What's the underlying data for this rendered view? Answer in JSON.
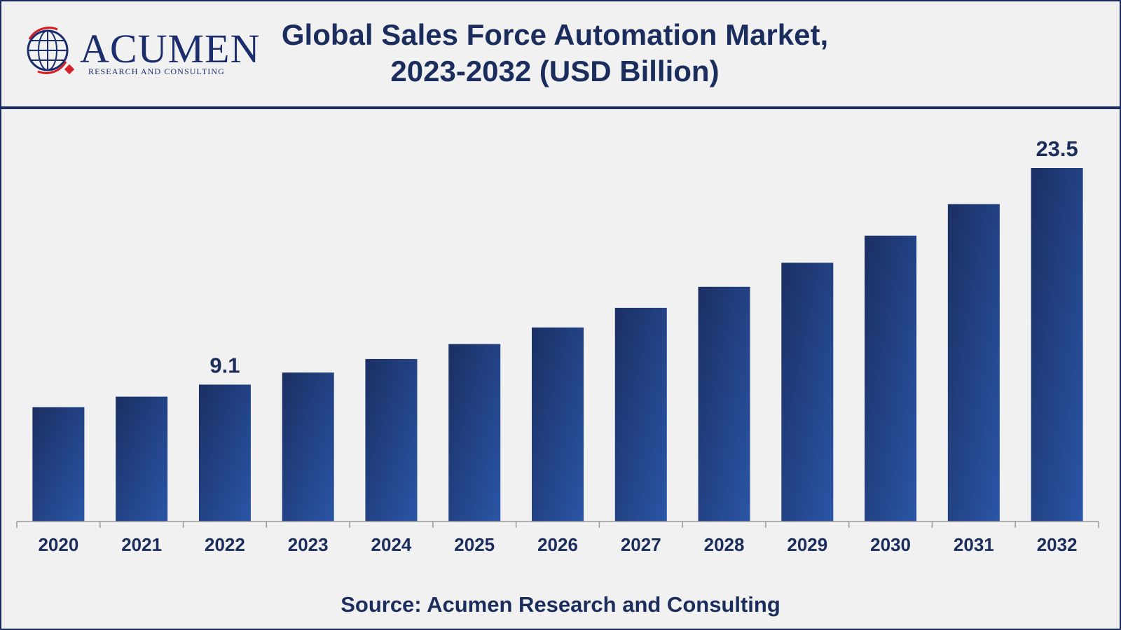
{
  "header": {
    "logo_word": "ACUMEN",
    "logo_sub": "RESEARCH AND CONSULTING",
    "title_line1": "Global Sales Force Automation Market,",
    "title_line2": "2023-2032 (USD Billion)"
  },
  "footer": {
    "source": "Source: Acumen Research and Consulting"
  },
  "colors": {
    "bar_dark": "#1b2f63",
    "bar_light": "#2a55a6",
    "text": "#1b2d5c",
    "logo_red": "#d32027"
  },
  "chart_data": {
    "type": "bar",
    "title": "Global Sales Force Automation Market, 2023-2032 (USD Billion)",
    "categories": [
      "2020",
      "2021",
      "2022",
      "2023",
      "2024",
      "2025",
      "2026",
      "2027",
      "2028",
      "2029",
      "2030",
      "2031",
      "2032"
    ],
    "values": [
      7.6,
      8.3,
      9.1,
      9.9,
      10.8,
      11.8,
      12.9,
      14.2,
      15.6,
      17.2,
      19.0,
      21.1,
      23.5
    ],
    "data_labels": [
      {
        "category": "2022",
        "text": "9.1"
      },
      {
        "category": "2032",
        "text": "23.5"
      }
    ],
    "xlabel": "",
    "ylabel": "",
    "ylim": [
      0,
      23.5
    ],
    "grid": false,
    "legend": "none"
  }
}
